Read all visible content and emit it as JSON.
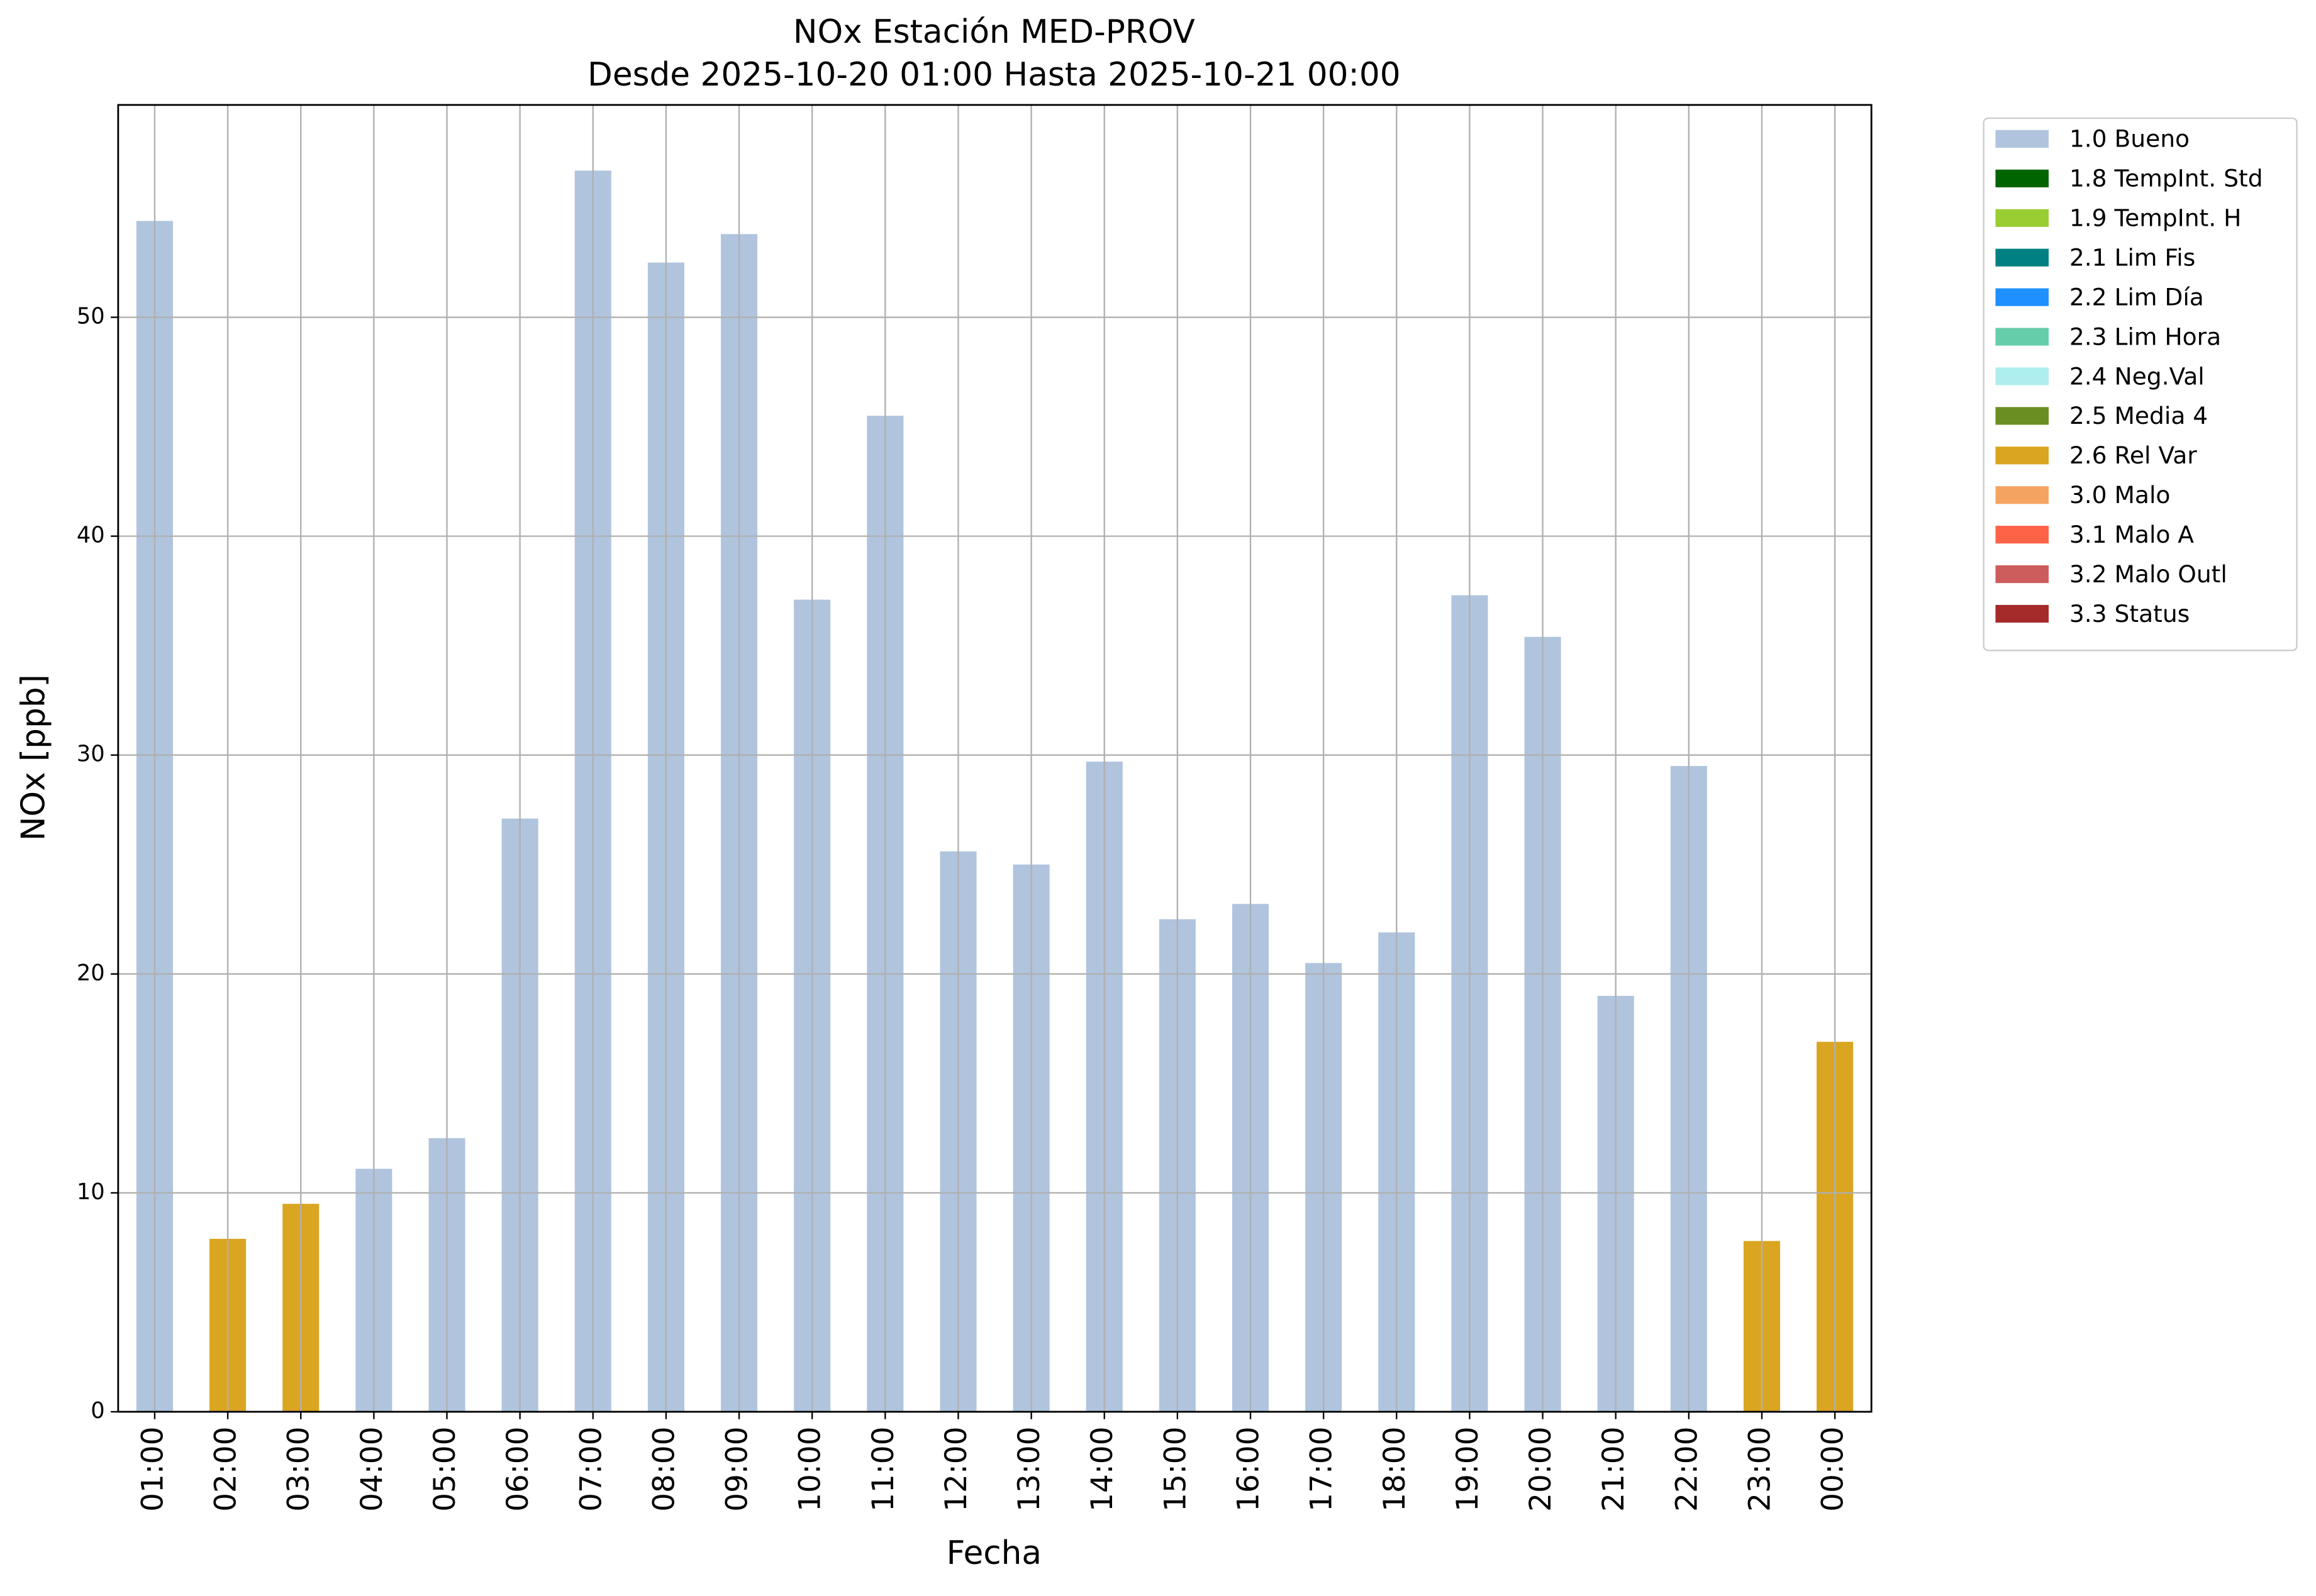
{
  "chart_data": {
    "type": "stacked_bar",
    "title": "NOx Estación MED-PROV",
    "subtitle": "Desde 2025-10-20 01:00 Hasta 2025-10-21 00:00",
    "x_label": "Fecha",
    "y_label": "NOx [ppb]",
    "categories": [
      "01:00",
      "02:00",
      "03:00",
      "04:00",
      "05:00",
      "06:00",
      "07:00",
      "08:00",
      "09:00",
      "10:00",
      "11:00",
      "12:00",
      "13:00",
      "14:00",
      "15:00",
      "16:00",
      "17:00",
      "18:00",
      "19:00",
      "20:00",
      "21:00",
      "22:00",
      "23:00",
      "00:00"
    ],
    "series": [
      {
        "name": "1.0 Bueno",
        "color": "#b0c4de",
        "values": [
          54.4,
          null,
          null,
          11.1,
          12.5,
          27.1,
          56.7,
          52.5,
          53.8,
          37.1,
          45.5,
          25.6,
          25.0,
          29.7,
          22.5,
          23.2,
          20.5,
          21.9,
          37.3,
          35.4,
          19.0,
          29.5,
          null,
          null
        ]
      },
      {
        "name": "1.8 TempInt. Std",
        "color": "#006400",
        "values": [
          null,
          null,
          null,
          null,
          null,
          null,
          null,
          null,
          null,
          null,
          null,
          null,
          null,
          null,
          null,
          null,
          null,
          null,
          null,
          null,
          null,
          null,
          null,
          null
        ]
      },
      {
        "name": "1.9 TempInt. H",
        "color": "#9acd32",
        "values": [
          null,
          null,
          null,
          null,
          null,
          null,
          null,
          null,
          null,
          null,
          null,
          null,
          null,
          null,
          null,
          null,
          null,
          null,
          null,
          null,
          null,
          null,
          null,
          null
        ]
      },
      {
        "name": "2.1 Lim Fis",
        "color": "#008080",
        "values": [
          null,
          null,
          null,
          null,
          null,
          null,
          null,
          null,
          null,
          null,
          null,
          null,
          null,
          null,
          null,
          null,
          null,
          null,
          null,
          null,
          null,
          null,
          null,
          null
        ]
      },
      {
        "name": "2.2 Lim Día",
        "color": "#1e90ff",
        "values": [
          null,
          null,
          null,
          null,
          null,
          null,
          null,
          null,
          null,
          null,
          null,
          null,
          null,
          null,
          null,
          null,
          null,
          null,
          null,
          null,
          null,
          null,
          null,
          null
        ]
      },
      {
        "name": "2.3 Lim Hora",
        "color": "#66cdaa",
        "values": [
          null,
          null,
          null,
          null,
          null,
          null,
          null,
          null,
          null,
          null,
          null,
          null,
          null,
          null,
          null,
          null,
          null,
          null,
          null,
          null,
          null,
          null,
          null,
          null
        ]
      },
      {
        "name": "2.4 Neg.Val",
        "color": "#afeeee",
        "values": [
          null,
          null,
          null,
          null,
          null,
          null,
          null,
          null,
          null,
          null,
          null,
          null,
          null,
          null,
          null,
          null,
          null,
          null,
          null,
          null,
          null,
          null,
          null,
          null
        ]
      },
      {
        "name": "2.5 Media 4",
        "color": "#6b8e23",
        "values": [
          null,
          null,
          null,
          null,
          null,
          null,
          null,
          null,
          null,
          null,
          null,
          null,
          null,
          null,
          null,
          null,
          null,
          null,
          null,
          null,
          null,
          null,
          null,
          null
        ]
      },
      {
        "name": "2.6 Rel Var",
        "color": "#daa520",
        "values": [
          null,
          7.9,
          9.5,
          null,
          null,
          null,
          null,
          null,
          null,
          null,
          null,
          null,
          null,
          null,
          null,
          null,
          null,
          null,
          null,
          null,
          null,
          null,
          7.8,
          16.9
        ]
      },
      {
        "name": "3.0 Malo",
        "color": "#f4a460",
        "values": [
          null,
          null,
          null,
          null,
          null,
          null,
          null,
          null,
          null,
          null,
          null,
          null,
          null,
          null,
          null,
          null,
          null,
          null,
          null,
          null,
          null,
          null,
          null,
          null
        ]
      },
      {
        "name": "3.1 Malo A",
        "color": "#ff6347",
        "values": [
          null,
          null,
          null,
          null,
          null,
          null,
          null,
          null,
          null,
          null,
          null,
          null,
          null,
          null,
          null,
          null,
          null,
          null,
          null,
          null,
          null,
          null,
          null,
          null
        ]
      },
      {
        "name": "3.2 Malo Outl",
        "color": "#cd5c5c",
        "values": [
          null,
          null,
          null,
          null,
          null,
          null,
          null,
          null,
          null,
          null,
          null,
          null,
          null,
          null,
          null,
          null,
          null,
          null,
          null,
          null,
          null,
          null,
          null,
          null
        ]
      },
      {
        "name": "3.3 Status",
        "color": "#a52a2a",
        "values": [
          null,
          null,
          null,
          null,
          null,
          null,
          null,
          null,
          null,
          null,
          null,
          null,
          null,
          null,
          null,
          null,
          null,
          null,
          null,
          null,
          null,
          null,
          null,
          null
        ]
      }
    ],
    "ylim": [
      0,
      59.7
    ],
    "yticks": [
      0,
      10,
      20,
      30,
      40,
      50
    ],
    "grid": true,
    "legend": "outside-right"
  }
}
